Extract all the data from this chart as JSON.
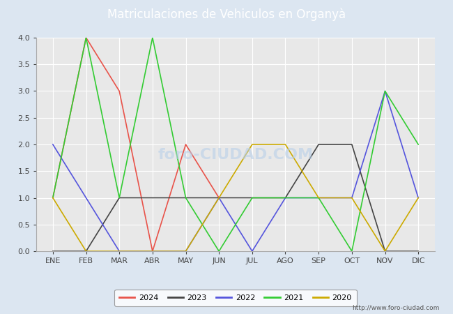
{
  "title": "Matriculaciones de Vehiculos en Organyà",
  "months": [
    "ENE",
    "FEB",
    "MAR",
    "ABR",
    "MAY",
    "JUN",
    "JUL",
    "AGO",
    "SEP",
    "OCT",
    "NOV",
    "DIC"
  ],
  "series": {
    "2024": {
      "values": [
        1,
        4,
        3,
        0,
        2,
        1,
        null,
        null,
        null,
        null,
        null,
        null
      ],
      "color": "#e8534a",
      "label": "2024"
    },
    "2023": {
      "values": [
        0,
        0,
        1,
        1,
        1,
        1,
        1,
        1,
        2,
        2,
        0,
        0
      ],
      "color": "#444444",
      "label": "2023"
    },
    "2022": {
      "values": [
        2,
        1,
        0,
        0,
        0,
        1,
        0,
        1,
        1,
        1,
        3,
        1
      ],
      "color": "#5555dd",
      "label": "2022"
    },
    "2021": {
      "values": [
        1,
        4,
        1,
        4,
        1,
        0,
        1,
        1,
        1,
        0,
        3,
        2
      ],
      "color": "#33cc33",
      "label": "2021"
    },
    "2020": {
      "values": [
        1,
        0,
        0,
        0,
        0,
        1,
        2,
        2,
        1,
        1,
        0,
        1
      ],
      "color": "#ccaa00",
      "label": "2020"
    }
  },
  "ylim": [
    0.0,
    4.0
  ],
  "yticks": [
    0.0,
    0.5,
    1.0,
    1.5,
    2.0,
    2.5,
    3.0,
    3.5,
    4.0
  ],
  "title_bg_color": "#5b9bd5",
  "plot_bg_color": "#e8e8e8",
  "grid_color": "#ffffff",
  "fig_bg_color": "#dce6f1",
  "url": "http://www.foro-ciudad.com",
  "legend_order": [
    "2024",
    "2023",
    "2022",
    "2021",
    "2020"
  ],
  "title_fontsize": 12,
  "tick_fontsize": 8,
  "legend_fontsize": 8,
  "linewidth": 1.2
}
